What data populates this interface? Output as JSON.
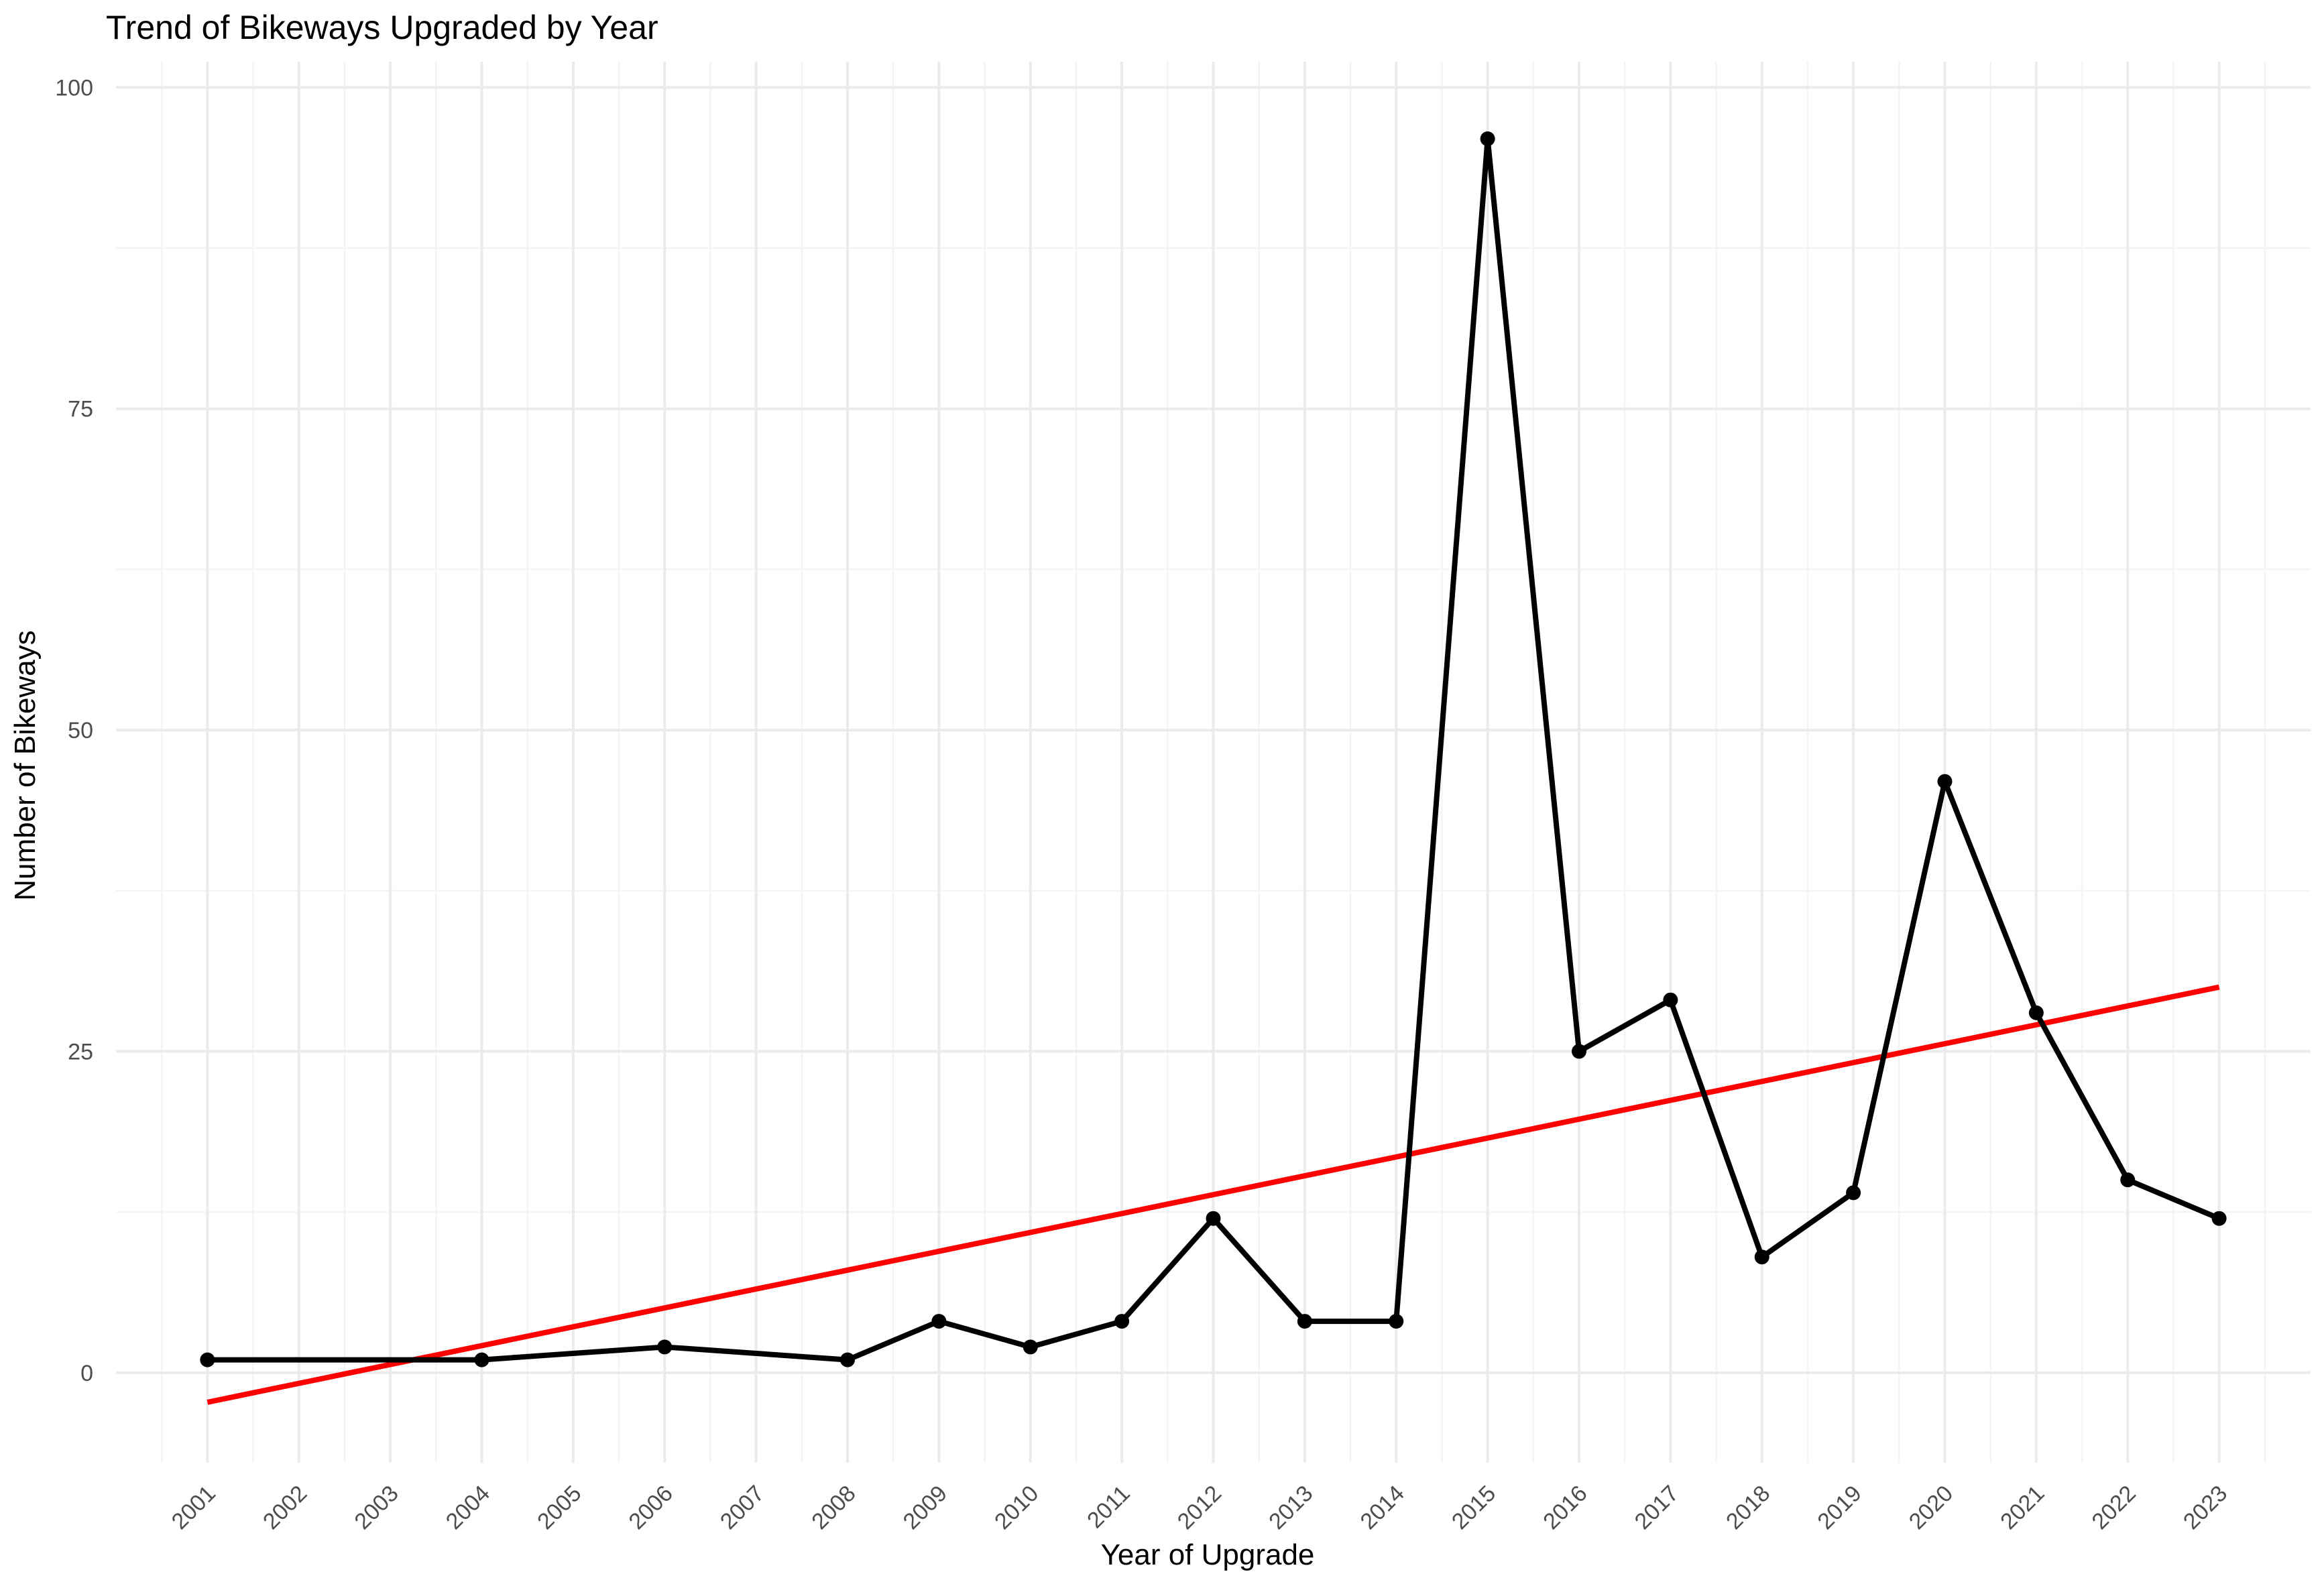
{
  "chart_data": {
    "type": "line",
    "title": "Trend of Bikeways Upgraded by Year",
    "xlabel": "Year of Upgrade",
    "ylabel": "Number of Bikeways",
    "x_ticks": [
      "2001",
      "2002",
      "2003",
      "2004",
      "2005",
      "2006",
      "2007",
      "2008",
      "2009",
      "2010",
      "2011",
      "2012",
      "2013",
      "2014",
      "2015",
      "2016",
      "2017",
      "2018",
      "2019",
      "2020",
      "2021",
      "2022",
      "2023"
    ],
    "y_ticks": [
      0,
      25,
      50,
      75,
      100
    ],
    "xlim": [
      2000,
      2024
    ],
    "ylim": [
      -7,
      102
    ],
    "grid": true,
    "legend": "none",
    "series": [
      {
        "x": [
          2001,
          2004,
          2006,
          2008,
          2009,
          2010,
          2011,
          2012,
          2013,
          2014,
          2015,
          2016,
          2017,
          2018,
          2019,
          2020,
          2021,
          2022,
          2023
        ],
        "y": [
          1,
          1,
          2,
          1,
          4,
          2,
          4,
          12,
          4,
          4,
          96,
          25,
          29,
          9,
          14,
          46,
          28,
          15,
          12
        ],
        "color": "#000000",
        "markers": true
      }
    ],
    "trend_line": {
      "type": "linear",
      "x": [
        2001,
        2023
      ],
      "y": [
        -2.3,
        30.0
      ],
      "color": "#ff0000"
    }
  }
}
